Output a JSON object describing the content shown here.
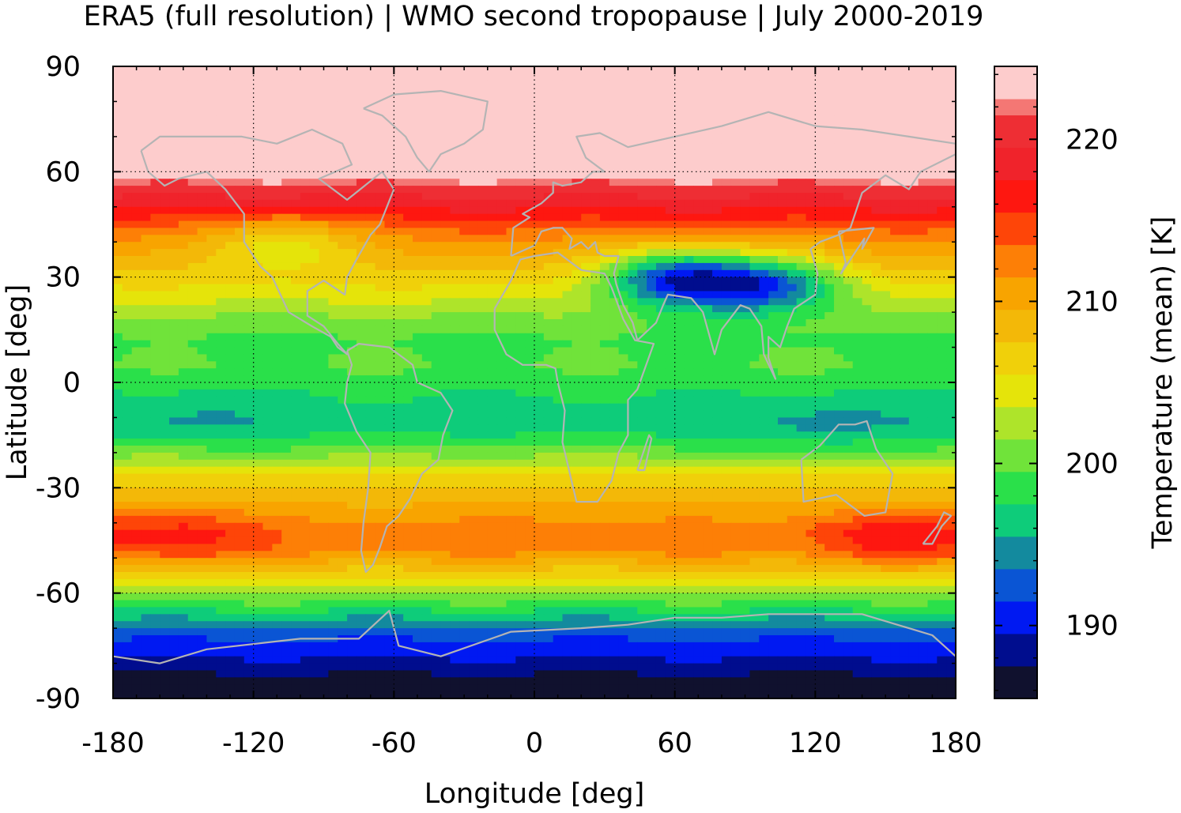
{
  "chart_data": {
    "type": "heatmap",
    "title": "ERA5 (full resolution) | WMO second tropopause | July 2000-2019",
    "xlabel": "Longitude [deg]",
    "ylabel": "Latitude [deg]",
    "xlim": [
      -180,
      180
    ],
    "ylim": [
      -90,
      90
    ],
    "x_ticks": [
      -180,
      -120,
      -60,
      0,
      60,
      120,
      180
    ],
    "y_ticks": [
      90,
      60,
      30,
      0,
      -30,
      -60,
      -90
    ],
    "x_tick_labels": [
      "-180",
      "-120",
      "-60",
      "0",
      "60",
      "120",
      "180"
    ],
    "y_tick_labels": [
      "90",
      "60",
      "30",
      "0",
      "-30",
      "-60",
      "-90"
    ],
    "grid": true,
    "colorbar": {
      "label": "Temperature (mean) [K]",
      "range": [
        185.5,
        224.5
      ],
      "ticks": [
        190,
        200,
        210,
        220
      ],
      "tick_labels": [
        "190",
        "200",
        "210",
        "220"
      ],
      "levels": [
        {
          "from": 185.5,
          "to": 187.5,
          "color": "#10112e"
        },
        {
          "from": 187.5,
          "to": 189.5,
          "color": "#000d8e"
        },
        {
          "from": 189.5,
          "to": 191.5,
          "color": "#0019f2"
        },
        {
          "from": 191.5,
          "to": 193.5,
          "color": "#0a55d4"
        },
        {
          "from": 193.5,
          "to": 195.5,
          "color": "#138a9e"
        },
        {
          "from": 195.5,
          "to": 197.5,
          "color": "#0ecc7a"
        },
        {
          "from": 197.5,
          "to": 199.5,
          "color": "#2ae04a"
        },
        {
          "from": 199.5,
          "to": 201.5,
          "color": "#70e33a"
        },
        {
          "from": 201.5,
          "to": 203.5,
          "color": "#aee42a"
        },
        {
          "from": 203.5,
          "to": 205.5,
          "color": "#e5e40a"
        },
        {
          "from": 205.5,
          "to": 207.5,
          "color": "#f0d00a"
        },
        {
          "from": 207.5,
          "to": 209.5,
          "color": "#f3b808"
        },
        {
          "from": 209.5,
          "to": 211.5,
          "color": "#f8a400"
        },
        {
          "from": 211.5,
          "to": 213.5,
          "color": "#fd7f06"
        },
        {
          "from": 213.5,
          "to": 215.5,
          "color": "#fe4508"
        },
        {
          "from": 215.5,
          "to": 217.5,
          "color": "#fe1710"
        },
        {
          "from": 217.5,
          "to": 219.5,
          "color": "#f0232b"
        },
        {
          "from": 219.5,
          "to": 221.5,
          "color": "#ee2e34"
        },
        {
          "from": 221.5,
          "to": 222.5,
          "color": "#f47774"
        },
        {
          "from": 222.5,
          "to": 224.5,
          "color": "#fdcccc"
        }
      ]
    },
    "zonal_profile": [
      {
        "lat": 90,
        "value": 224.0
      },
      {
        "lat": 60,
        "value": 224.0
      },
      {
        "lat": 57,
        "value": 222.0
      },
      {
        "lat": 52,
        "value": 219.0
      },
      {
        "lat": 47,
        "value": 216.0
      },
      {
        "lat": 42,
        "value": 212.5
      },
      {
        "lat": 36,
        "value": 209.5
      },
      {
        "lat": 30,
        "value": 207.0
      },
      {
        "lat": 24,
        "value": 204.0
      },
      {
        "lat": 18,
        "value": 201.0
      },
      {
        "lat": 12,
        "value": 199.0
      },
      {
        "lat": 5,
        "value": 199.5
      },
      {
        "lat": 0,
        "value": 198.5
      },
      {
        "lat": -6,
        "value": 197.0
      },
      {
        "lat": -12,
        "value": 196.5
      },
      {
        "lat": -18,
        "value": 199.0
      },
      {
        "lat": -24,
        "value": 204.0
      },
      {
        "lat": -30,
        "value": 207.5
      },
      {
        "lat": -36,
        "value": 210.0
      },
      {
        "lat": -42,
        "value": 212.5
      },
      {
        "lat": -48,
        "value": 212.0
      },
      {
        "lat": -54,
        "value": 207.0
      },
      {
        "lat": -60,
        "value": 201.5
      },
      {
        "lat": -65,
        "value": 197.5
      },
      {
        "lat": -70,
        "value": 193.5
      },
      {
        "lat": -75,
        "value": 190.5
      },
      {
        "lat": -80,
        "value": 189.0
      },
      {
        "lat": -85,
        "value": 186.5
      },
      {
        "lat": -90,
        "value": 186.5
      }
    ],
    "anomalies": [
      {
        "lon": -150,
        "lat": -44,
        "value": 216.5
      },
      {
        "lon": 150,
        "lat": -44,
        "value": 216.5
      },
      {
        "lon": 15,
        "lat": -40,
        "value": 212.0
      },
      {
        "lon": 60,
        "lat": 30,
        "value": 192.0
      },
      {
        "lon": 100,
        "lat": 28,
        "value": 193.0
      },
      {
        "lon": -108,
        "lat": 40,
        "value": 205.0
      },
      {
        "lon": 120,
        "lat": -12,
        "value": 194.5
      },
      {
        "lon": -150,
        "lat": -10,
        "value": 195.0
      }
    ]
  }
}
